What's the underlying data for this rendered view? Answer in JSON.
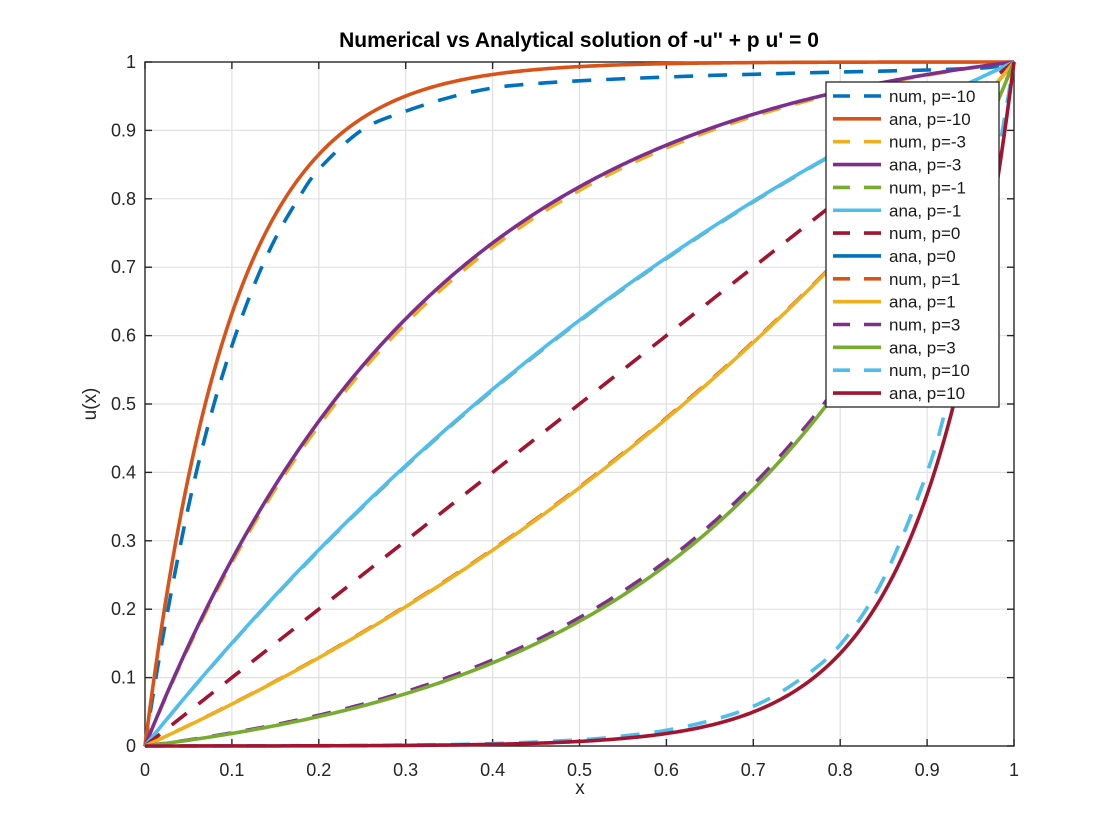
{
  "window": {
    "background": "#ffffff"
  },
  "chart_data": {
    "type": "line",
    "title": "Numerical vs Analytical solution of -u'' + p u' = 0",
    "xlabel": "x",
    "ylabel": "u(x)",
    "xlim": [
      0,
      1
    ],
    "ylim": [
      0,
      1
    ],
    "grid": true,
    "grid_color": "#e0e0e0",
    "axis_color": "#262626",
    "tick_label_color": "#262626",
    "legend": {
      "position": "upper-right",
      "background": "#ffffff",
      "border_color": "#262626"
    },
    "x_samples": [
      0,
      0.1,
      0.2,
      0.3,
      0.4,
      0.5,
      0.6,
      0.7,
      0.8,
      0.9,
      1
    ],
    "xtick_labels": [
      "0",
      "0.1",
      "0.2",
      "0.3",
      "0.4",
      "0.5",
      "0.6",
      "0.7",
      "0.8",
      "0.9",
      "1"
    ],
    "ytick_labels": [
      "0",
      "0.1",
      "0.2",
      "0.3",
      "0.4",
      "0.5",
      "0.6",
      "0.7",
      "0.8",
      "0.9",
      "1"
    ],
    "xtick_values": [
      0,
      0.1,
      0.2,
      0.3,
      0.4,
      0.5,
      0.6,
      0.7,
      0.8,
      0.9,
      1
    ],
    "ytick_values": [
      0,
      0.1,
      0.2,
      0.3,
      0.4,
      0.5,
      0.6,
      0.7,
      0.8,
      0.9,
      1
    ],
    "series": [
      {
        "label": "num, p=-10",
        "kind": "numerical",
        "p": -10,
        "style": "dashed",
        "color": "#0072BD",
        "plotted": true,
        "values": [
          0,
          0.585,
          0.843,
          0.928,
          0.962,
          0.972,
          0.978,
          0.982,
          0.985,
          0.988,
          1
        ],
        "points": [
          [
            0,
            0
          ],
          [
            0.01,
            0.08
          ],
          [
            0.025,
            0.19
          ],
          [
            0.05,
            0.35
          ],
          [
            0.075,
            0.48
          ],
          [
            0.1,
            0.585
          ],
          [
            0.125,
            0.672
          ],
          [
            0.15,
            0.742
          ],
          [
            0.175,
            0.797
          ],
          [
            0.2,
            0.843
          ],
          [
            0.25,
            0.901
          ],
          [
            0.3,
            0.928
          ],
          [
            0.35,
            0.948
          ],
          [
            0.4,
            0.962
          ],
          [
            0.45,
            0.9685
          ],
          [
            0.5,
            0.9725
          ],
          [
            0.55,
            0.9755
          ],
          [
            0.6,
            0.978
          ],
          [
            0.65,
            0.9803
          ],
          [
            0.7,
            0.982
          ],
          [
            0.75,
            0.9838
          ],
          [
            0.8,
            0.9853
          ],
          [
            0.85,
            0.9868
          ],
          [
            0.9,
            0.9883
          ],
          [
            0.95,
            0.9905
          ],
          [
            0.975,
            0.9925
          ],
          [
            1,
            1
          ]
        ]
      },
      {
        "label": "ana, p=-10",
        "kind": "analytical",
        "p": -10,
        "style": "solid",
        "color": "#D95319",
        "plotted": true,
        "p_render": -10,
        "values": [
          0,
          0.632,
          0.865,
          0.95,
          0.982,
          0.993,
          0.998,
          0.999,
          1.0,
          1.0,
          1
        ]
      },
      {
        "label": "num, p=-3",
        "kind": "numerical",
        "p": -3,
        "style": "dashed",
        "color": "#EDB120",
        "plotted": true,
        "p_render": -2.93,
        "values": [
          0,
          0.268,
          0.468,
          0.618,
          0.729,
          0.812,
          0.874,
          0.921,
          0.955,
          0.981,
          1
        ]
      },
      {
        "label": "ana, p=-3",
        "kind": "analytical",
        "p": -3,
        "style": "solid",
        "color": "#7E2F8E",
        "plotted": true,
        "p_render": -3,
        "values": [
          0,
          0.273,
          0.475,
          0.624,
          0.735,
          0.818,
          0.878,
          0.924,
          0.957,
          0.982,
          1
        ]
      },
      {
        "label": "num, p=-1",
        "kind": "numerical",
        "p": -1,
        "style": "dashed",
        "color": "#77AC30",
        "plotted": true,
        "p_render": -0.99,
        "values": [
          0,
          0.15,
          0.286,
          0.409,
          0.521,
          0.621,
          0.713,
          0.796,
          0.871,
          0.938,
          1
        ]
      },
      {
        "label": "ana, p=-1",
        "kind": "analytical",
        "p": -1,
        "style": "solid",
        "color": "#4DBEEE",
        "plotted": true,
        "p_render": -1,
        "values": [
          0,
          0.151,
          0.287,
          0.41,
          0.522,
          0.623,
          0.714,
          0.796,
          0.871,
          0.939,
          1
        ]
      },
      {
        "label": "num, p=0",
        "kind": "numerical",
        "p": 0,
        "style": "dashed",
        "color": "#A2142F",
        "plotted": true,
        "p_render": 0,
        "values": [
          0,
          0.1,
          0.2,
          0.3,
          0.4,
          0.5,
          0.6,
          0.7,
          0.8,
          0.9,
          1
        ]
      },
      {
        "label": "ana, p=0",
        "kind": "analytical",
        "p": 0,
        "style": "solid",
        "color": "#0072BD",
        "plotted": false,
        "values": [
          0,
          0.1,
          0.2,
          0.3,
          0.4,
          0.5,
          0.6,
          0.7,
          0.8,
          0.9,
          1
        ]
      },
      {
        "label": "num, p=1",
        "kind": "numerical",
        "p": 1,
        "style": "dashed",
        "color": "#D95319",
        "plotted": true,
        "p_render": 0.99,
        "values": [
          0,
          0.061,
          0.129,
          0.204,
          0.287,
          0.378,
          0.479,
          0.591,
          0.714,
          0.85,
          1
        ]
      },
      {
        "label": "ana, p=1",
        "kind": "analytical",
        "p": 1,
        "style": "solid",
        "color": "#EDB120",
        "plotted": true,
        "p_render": 1,
        "values": [
          0,
          0.061,
          0.129,
          0.204,
          0.286,
          0.377,
          0.478,
          0.59,
          0.713,
          0.849,
          1
        ]
      },
      {
        "label": "num, p=3",
        "kind": "numerical",
        "p": 3,
        "style": "dashed",
        "color": "#7E2F8E",
        "plotted": true,
        "p_render": 2.93,
        "values": [
          0,
          0.019,
          0.045,
          0.079,
          0.126,
          0.188,
          0.271,
          0.382,
          0.532,
          0.732,
          1
        ]
      },
      {
        "label": "ana, p=3",
        "kind": "analytical",
        "p": 3,
        "style": "solid",
        "color": "#77AC30",
        "plotted": true,
        "p_render": 3,
        "values": [
          0,
          0.018,
          0.043,
          0.076,
          0.122,
          0.182,
          0.265,
          0.375,
          0.525,
          0.727,
          1
        ]
      },
      {
        "label": "num, p=10",
        "kind": "numerical",
        "p": 10,
        "style": "dashed",
        "color": "#4DBEEE",
        "plotted": true,
        "values": [
          0,
          0.0002,
          0.0005,
          0.0014,
          0.0035,
          0.009,
          0.023,
          0.058,
          0.148,
          0.4,
          1
        ],
        "points": [
          [
            0,
            0
          ],
          [
            0.1,
            0.0002
          ],
          [
            0.2,
            0.0005
          ],
          [
            0.3,
            0.0014
          ],
          [
            0.4,
            0.0035
          ],
          [
            0.5,
            0.009
          ],
          [
            0.55,
            0.0145
          ],
          [
            0.6,
            0.023
          ],
          [
            0.65,
            0.037
          ],
          [
            0.7,
            0.058
          ],
          [
            0.75,
            0.094
          ],
          [
            0.8,
            0.148
          ],
          [
            0.85,
            0.245
          ],
          [
            0.9,
            0.4
          ],
          [
            0.925,
            0.512
          ],
          [
            0.95,
            0.65
          ],
          [
            0.975,
            0.815
          ],
          [
            1,
            1
          ]
        ]
      },
      {
        "label": "ana, p=10",
        "kind": "analytical",
        "p": 10,
        "style": "solid",
        "color": "#A2142F",
        "plotted": true,
        "p_render": 10,
        "values": [
          0,
          0.0001,
          0.0003,
          0.0009,
          0.0024,
          0.0067,
          0.0183,
          0.0497,
          0.1353,
          0.3679,
          1
        ]
      }
    ]
  }
}
